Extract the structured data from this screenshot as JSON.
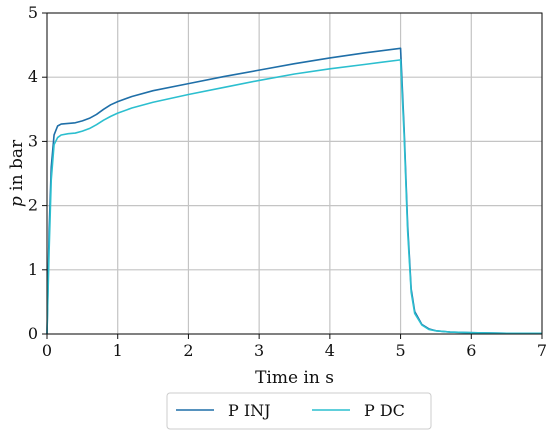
{
  "colors": {
    "p_inj": "#1f6fa8",
    "p_dc": "#2cbfcf",
    "grid": "#c4c4c4",
    "axis": "#111111",
    "legend_border": "#cccccc"
  },
  "chart_data": {
    "type": "line",
    "title": "",
    "xlabel": "Time in s",
    "ylabel_var": "p",
    "ylabel_rest": " in bar",
    "xlim": [
      0,
      7
    ],
    "ylim": [
      0,
      5
    ],
    "x_ticks": [
      0,
      1,
      2,
      3,
      4,
      5,
      6,
      7
    ],
    "y_ticks": [
      0,
      1,
      2,
      3,
      4,
      5
    ],
    "grid": true,
    "legend": "bottom-center-outside",
    "series": [
      {
        "name": "P INJ",
        "color_key": "p_inj",
        "x": [
          0,
          0.03,
          0.06,
          0.1,
          0.15,
          0.2,
          0.3,
          0.4,
          0.5,
          0.6,
          0.7,
          0.8,
          0.9,
          1.0,
          1.2,
          1.5,
          2.0,
          2.5,
          3.0,
          3.5,
          4.0,
          4.5,
          5.0,
          5.05,
          5.1,
          5.15,
          5.2,
          5.3,
          5.4,
          5.5,
          5.7,
          6.0,
          6.5,
          7.0
        ],
        "y": [
          0,
          1.6,
          2.6,
          3.1,
          3.24,
          3.27,
          3.28,
          3.29,
          3.32,
          3.36,
          3.42,
          3.5,
          3.57,
          3.62,
          3.7,
          3.79,
          3.9,
          4.01,
          4.11,
          4.21,
          4.3,
          4.38,
          4.45,
          3.2,
          1.7,
          0.7,
          0.35,
          0.15,
          0.08,
          0.05,
          0.03,
          0.02,
          0.01,
          0.01
        ]
      },
      {
        "name": "P DC",
        "color_key": "p_dc",
        "x": [
          0,
          0.03,
          0.06,
          0.1,
          0.15,
          0.2,
          0.3,
          0.4,
          0.5,
          0.6,
          0.7,
          0.8,
          0.9,
          1.0,
          1.2,
          1.5,
          2.0,
          2.5,
          3.0,
          3.5,
          4.0,
          4.5,
          5.0,
          5.05,
          5.1,
          5.15,
          5.2,
          5.3,
          5.4,
          5.5,
          5.7,
          6.0,
          6.5,
          7.0
        ],
        "y": [
          0,
          1.3,
          2.4,
          2.95,
          3.06,
          3.1,
          3.12,
          3.13,
          3.16,
          3.2,
          3.26,
          3.33,
          3.39,
          3.44,
          3.52,
          3.61,
          3.73,
          3.84,
          3.95,
          4.05,
          4.13,
          4.2,
          4.27,
          3.1,
          1.6,
          0.65,
          0.32,
          0.14,
          0.07,
          0.05,
          0.03,
          0.02,
          0.01,
          0.01
        ]
      }
    ]
  }
}
